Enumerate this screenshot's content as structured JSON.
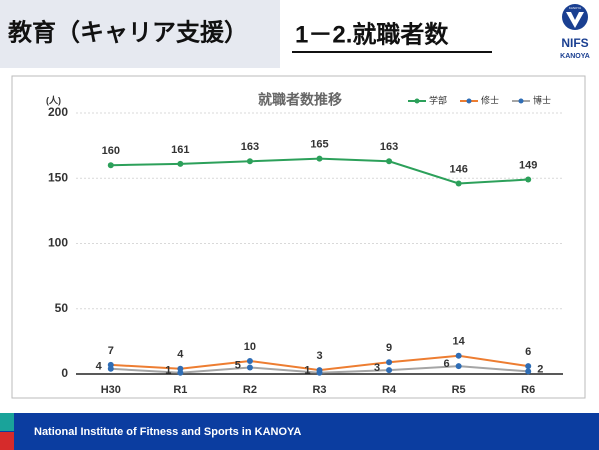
{
  "header": {
    "section": "教育（キャリア支援）",
    "title": "1－2.就職者数",
    "logo_main": "NIFS",
    "logo_sub": "KANOYA",
    "logo_ring": "KANOYA"
  },
  "footer": {
    "text": "National Institute of Fitness and Sports in KANOYA"
  },
  "chart_data": {
    "type": "line",
    "title": "就職者数推移",
    "y_unit": "(人)",
    "categories": [
      "H30",
      "R1",
      "R2",
      "R3",
      "R4",
      "R5",
      "R6"
    ],
    "series": [
      {
        "name": "学部",
        "color": "#2ca05a",
        "marker_color": "#2ca05a",
        "values": [
          160,
          161,
          163,
          165,
          163,
          146,
          149
        ]
      },
      {
        "name": "修士",
        "color": "#ed7d31",
        "marker_color": "#2f6db5",
        "values": [
          7,
          4,
          10,
          3,
          9,
          14,
          6
        ]
      },
      {
        "name": "博士",
        "color": "#a5a5a5",
        "marker_color": "#2f6db5",
        "values": [
          4,
          1,
          5,
          1,
          3,
          6,
          2
        ]
      }
    ],
    "ylim": [
      0,
      200
    ],
    "yticks": [
      0,
      50,
      100,
      150,
      200
    ],
    "grid": true,
    "legend": "top-right"
  }
}
